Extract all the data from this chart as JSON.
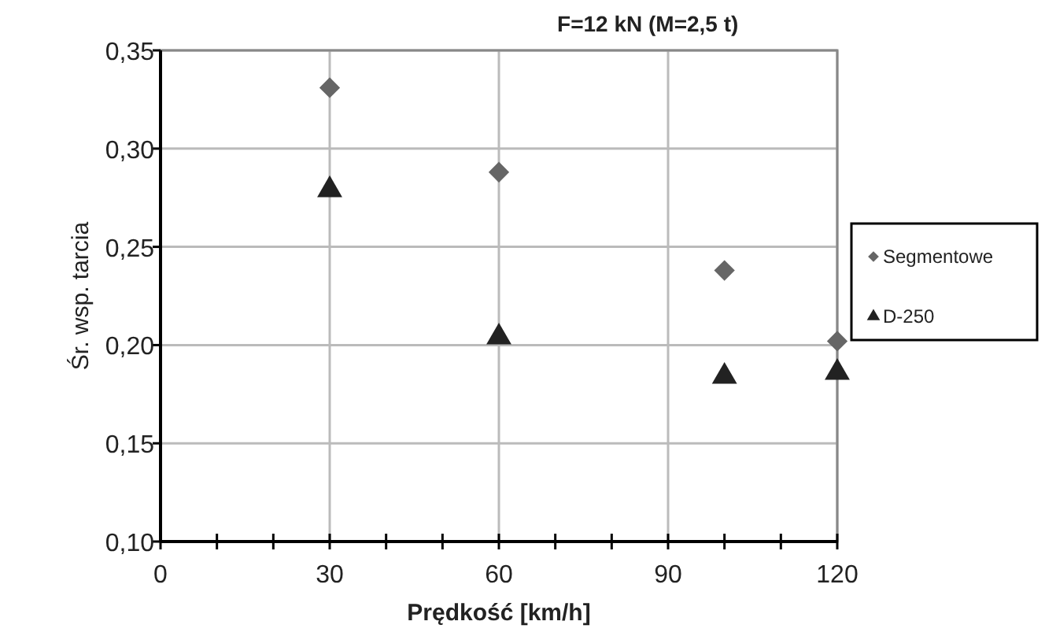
{
  "chart_data": {
    "type": "scatter",
    "title": "F=12 kN (M=2,5 t)",
    "xlabel": "Prędkość [km/h]",
    "ylabel": "Śr. wsp. tarcia",
    "xlim": [
      0,
      120
    ],
    "xticks": [
      0,
      {
        "value": 10,
        "label": null
      },
      {
        "value": 20,
        "label": null
      },
      30,
      {
        "value": 40,
        "label": null
      },
      {
        "value": 50,
        "label": null
      },
      60,
      {
        "value": 70,
        "label": null
      },
      {
        "value": 80,
        "label": null
      },
      90,
      {
        "value": 100,
        "label": null
      },
      {
        "value": 110,
        "label": null
      },
      120
    ],
    "ylim": [
      0.1,
      0.35
    ],
    "yticks": [
      {
        "value": 0.1,
        "label": "0,10"
      },
      {
        "value": 0.15,
        "label": "0,15"
      },
      {
        "value": 0.2,
        "label": "0,20"
      },
      {
        "value": 0.25,
        "label": "0,25"
      },
      {
        "value": 0.3,
        "label": "0,30"
      },
      {
        "value": 0.35,
        "label": "0,35"
      }
    ],
    "grid": true,
    "legend": "right",
    "series": [
      {
        "name": "Segmentowe",
        "color": "#666666",
        "marker": "diamond",
        "x": [
          30,
          60,
          100,
          120
        ],
        "values": [
          0.331,
          0.288,
          0.238,
          0.202
        ]
      },
      {
        "name": "D-250",
        "color": "#222222",
        "marker": "triangle",
        "x": [
          30,
          60,
          100,
          120
        ],
        "values": [
          0.279,
          0.204,
          0.184,
          0.186
        ]
      }
    ]
  }
}
